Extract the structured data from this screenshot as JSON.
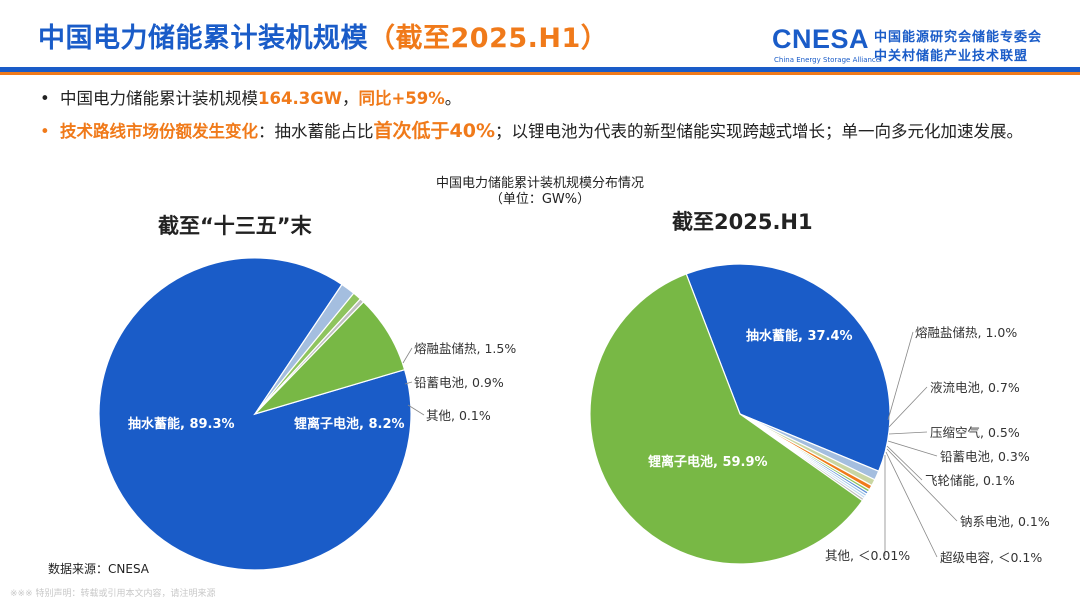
{
  "header": {
    "title_main": "中国电力储能累计装机规模",
    "title_hl": "（截至2025.H1）",
    "logo_text": "CNESA",
    "logo_sub": "China Energy Storage Alliance",
    "org_line1": "中国能源研究会储能专委会",
    "org_line2": "中关村储能产业技术联盟"
  },
  "bullets": {
    "b1_prefix": "中国电力储能累计装机规模",
    "b1_value": "164.3GW",
    "b1_mid": "，",
    "b1_yoy": "同比+59%",
    "b1_end": "。",
    "b2_head": "技术路线市场份额发生变化",
    "b2_a": "：抽水蓄能占比",
    "b2_hl": "首次低于40%",
    "b2_b": "；以锂电池为代表的新型储能实现跨越式增长；单一向多元化加速发展。"
  },
  "chart_title": "中国电力储能累计装机规模分布情况",
  "chart_unit": "（单位：GW%）",
  "source": "数据来源：CNESA",
  "disclaimer": "※※※ 特别声明：转载或引用本文内容，请注明来源",
  "colors": {
    "brand_blue": "#1a5cc8",
    "accent_orange": "#f07a1a",
    "pumped": "#1a5cc8",
    "lithium": "#78b845",
    "molten_salt": "#a4bedf",
    "lead_acid": "#8fc45e",
    "other": "#bfbfbf",
    "flow": "#c9d6a2",
    "compressed_air": "#f07a1a",
    "lead2": "#f2a13a",
    "flywheel": "#5b8fd6",
    "sodium": "#9dc3e6",
    "supercap": "#c5dcf0",
    "other2": "#d9d9d9"
  },
  "chart_data": [
    {
      "type": "pie",
      "title": "截至“十三五”末",
      "slices": [
        {
          "name": "抽水蓄能",
          "value": 89.3,
          "label": "抽水蓄能, 89.3%",
          "inside": true
        },
        {
          "name": "熔融盐储热",
          "value": 1.5,
          "label": "熔融盐储热, 1.5%"
        },
        {
          "name": "铅蓄电池",
          "value": 0.9,
          "label": "铅蓄电池, 0.9%"
        },
        {
          "name": "其他",
          "value": 0.1,
          "label": "其他, 0.1%"
        },
        {
          "name": "锂离子电池",
          "value": 8.2,
          "label": "锂离子电池, 8.2%",
          "inside": true
        }
      ]
    },
    {
      "type": "pie",
      "title": "截至2025.H1",
      "slices": [
        {
          "name": "抽水蓄能",
          "value": 37.4,
          "label": "抽水蓄能, 37.4%",
          "inside": true
        },
        {
          "name": "熔融盐储热",
          "value": 1.0,
          "label": "熔融盐储热, 1.0%"
        },
        {
          "name": "液流电池",
          "value": 0.7,
          "label": "液流电池, 0.7%"
        },
        {
          "name": "压缩空气",
          "value": 0.5,
          "label": "压缩空气, 0.5%"
        },
        {
          "name": "铅蓄电池",
          "value": 0.3,
          "label": "铅蓄电池, 0.3%"
        },
        {
          "name": "飞轮储能",
          "value": 0.1,
          "label": "飞轮储能, 0.1%"
        },
        {
          "name": "钠系电池",
          "value": 0.1,
          "label": "钠系电池, 0.1%"
        },
        {
          "name": "超级电容",
          "value": 0.05,
          "label": "超级电容, ＜0.1%"
        },
        {
          "name": "其他",
          "value": 0.01,
          "label": "其他, ＜0.01%"
        },
        {
          "name": "锂离子电池",
          "value": 59.9,
          "label": "锂离子电池, 59.9%",
          "inside": true
        }
      ]
    }
  ]
}
